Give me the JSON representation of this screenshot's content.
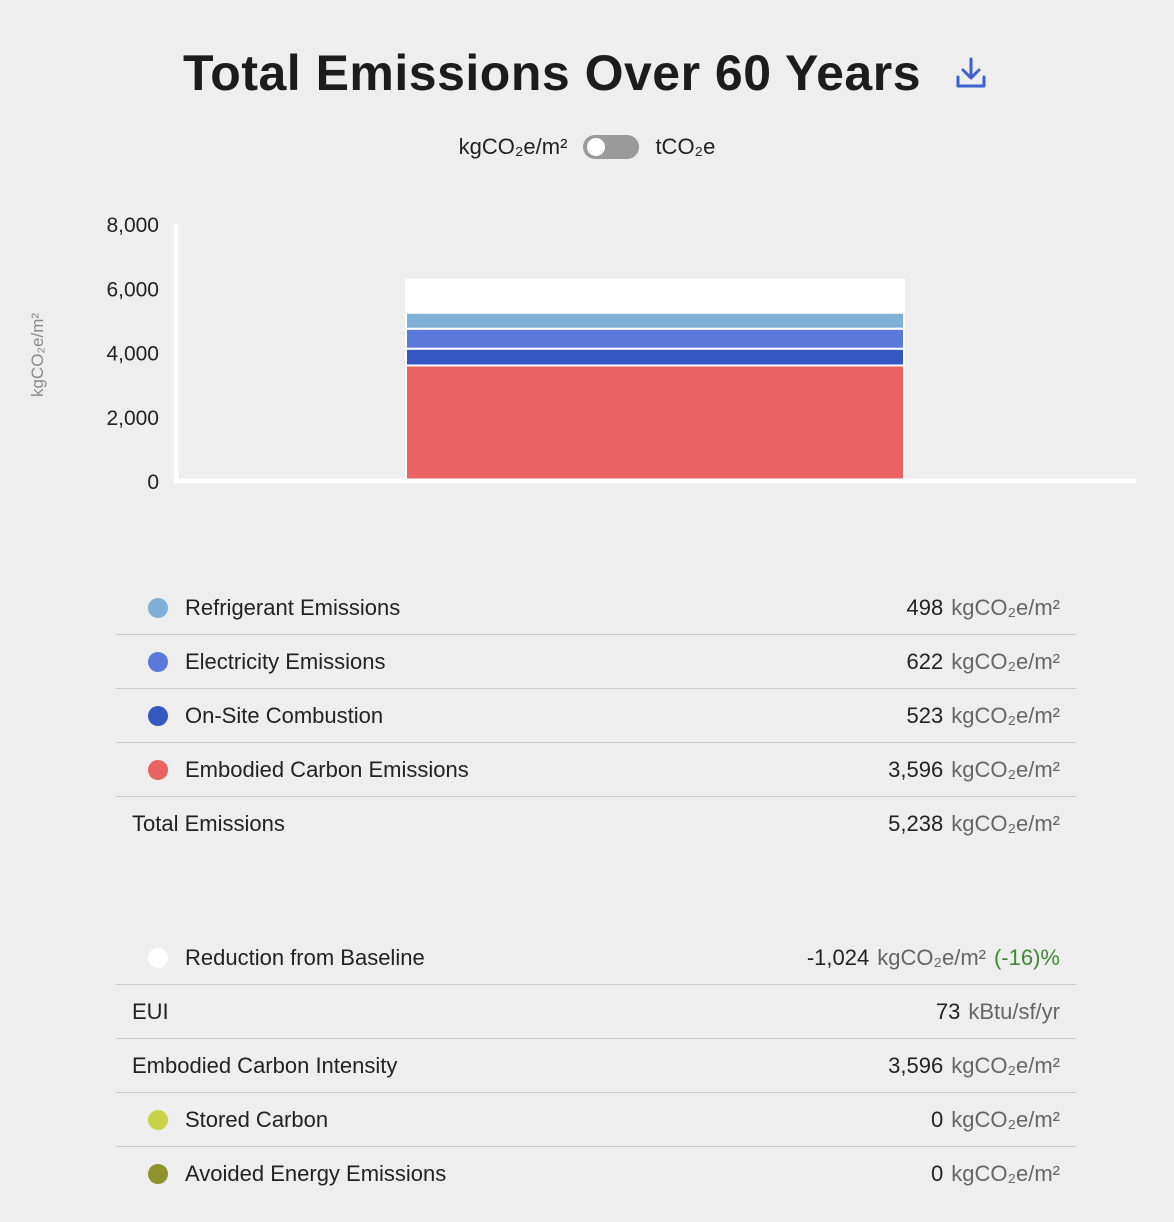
{
  "header": {
    "title": "Total Emissions Over 60 Years",
    "download_icon": "download-icon"
  },
  "unit_toggle": {
    "left_label": "kgCO₂e/m²",
    "right_label": "tCO₂e",
    "selected": "left"
  },
  "colors": {
    "refrigerant": "#7fb0d8",
    "electricity": "#5b79d9",
    "combustion": "#3557c2",
    "embodied": "#e96363",
    "baseline": "#ffffff",
    "stored": "#c9d34a",
    "avoided": "#8f932e",
    "positive_pct": "#3f8a33"
  },
  "chart_data": {
    "type": "bar",
    "stacked": true,
    "categories": [
      ""
    ],
    "ylabel": "kgCO₂e/m²",
    "ylim": [
      0,
      8000
    ],
    "yticks": [
      "8,000",
      "6,000",
      "4,000",
      "2,000",
      "0"
    ],
    "ytick_values": [
      8000,
      6000,
      4000,
      2000,
      0
    ],
    "series": [
      {
        "name": "Embodied Carbon Emissions",
        "values": [
          3596
        ],
        "color": "#e96363"
      },
      {
        "name": "On-Site Combustion",
        "values": [
          523
        ],
        "color": "#3557c2"
      },
      {
        "name": "Electricity Emissions",
        "values": [
          622
        ],
        "color": "#5b79d9"
      },
      {
        "name": "Refrigerant Emissions",
        "values": [
          498
        ],
        "color": "#7fb0d8"
      },
      {
        "name": "Reduction from Baseline",
        "values": [
          1024
        ],
        "color": "#ffffff"
      }
    ],
    "grid": false
  },
  "emissions": {
    "rows": [
      {
        "label": "Refrigerant Emissions",
        "value": "498",
        "unit": "kgCO₂e/m²"
      },
      {
        "label": "Electricity Emissions",
        "value": "622",
        "unit": "kgCO₂e/m²"
      },
      {
        "label": "On-Site Combustion",
        "value": "523",
        "unit": "kgCO₂e/m²"
      },
      {
        "label": "Embodied Carbon Emissions",
        "value": "3,596",
        "unit": "kgCO₂e/m²"
      }
    ],
    "total": {
      "label": "Total Emissions",
      "value": "5,238",
      "unit": "kgCO₂e/m²"
    }
  },
  "metrics": {
    "baseline": {
      "label": "Reduction from Baseline",
      "value": "-1,024",
      "unit": "kgCO₂e/m²",
      "pct": "(-16)%"
    },
    "eui": {
      "label": "EUI",
      "value": "73",
      "unit": "kBtu/sf/yr"
    },
    "eci": {
      "label": "Embodied Carbon Intensity",
      "value": "3,596",
      "unit": "kgCO₂e/m²"
    },
    "stored": {
      "label": "Stored Carbon",
      "value": "0",
      "unit": "kgCO₂e/m²"
    },
    "avoided": {
      "label": "Avoided Energy Emissions",
      "value": "0",
      "unit": "kgCO₂e/m²"
    }
  }
}
